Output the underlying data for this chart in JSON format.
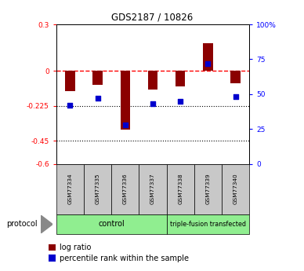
{
  "title": "GDS2187 / 10826",
  "samples": [
    "GSM77334",
    "GSM77335",
    "GSM77336",
    "GSM77337",
    "GSM77338",
    "GSM77339",
    "GSM77340"
  ],
  "log_ratio": [
    -0.13,
    -0.09,
    -0.38,
    -0.12,
    -0.1,
    0.18,
    -0.08
  ],
  "percentile_rank": [
    42,
    47,
    28,
    43,
    45,
    72,
    48
  ],
  "ylim_left": [
    -0.6,
    0.3
  ],
  "ylim_right": [
    0,
    100
  ],
  "y_ticks_left": [
    0.3,
    0.0,
    -0.225,
    -0.45,
    -0.6
  ],
  "y_ticks_right": [
    100,
    75,
    50,
    25,
    0
  ],
  "n_control": 4,
  "n_triple": 3,
  "bar_color": "#8B0000",
  "point_color": "#0000CD",
  "control_color": "#90EE90",
  "triple_color": "#90EE90",
  "protocol_label": "protocol",
  "control_label": "control",
  "triple_label": "triple-fusion transfected",
  "legend_log": "log ratio",
  "legend_pct": "percentile rank within the sample"
}
